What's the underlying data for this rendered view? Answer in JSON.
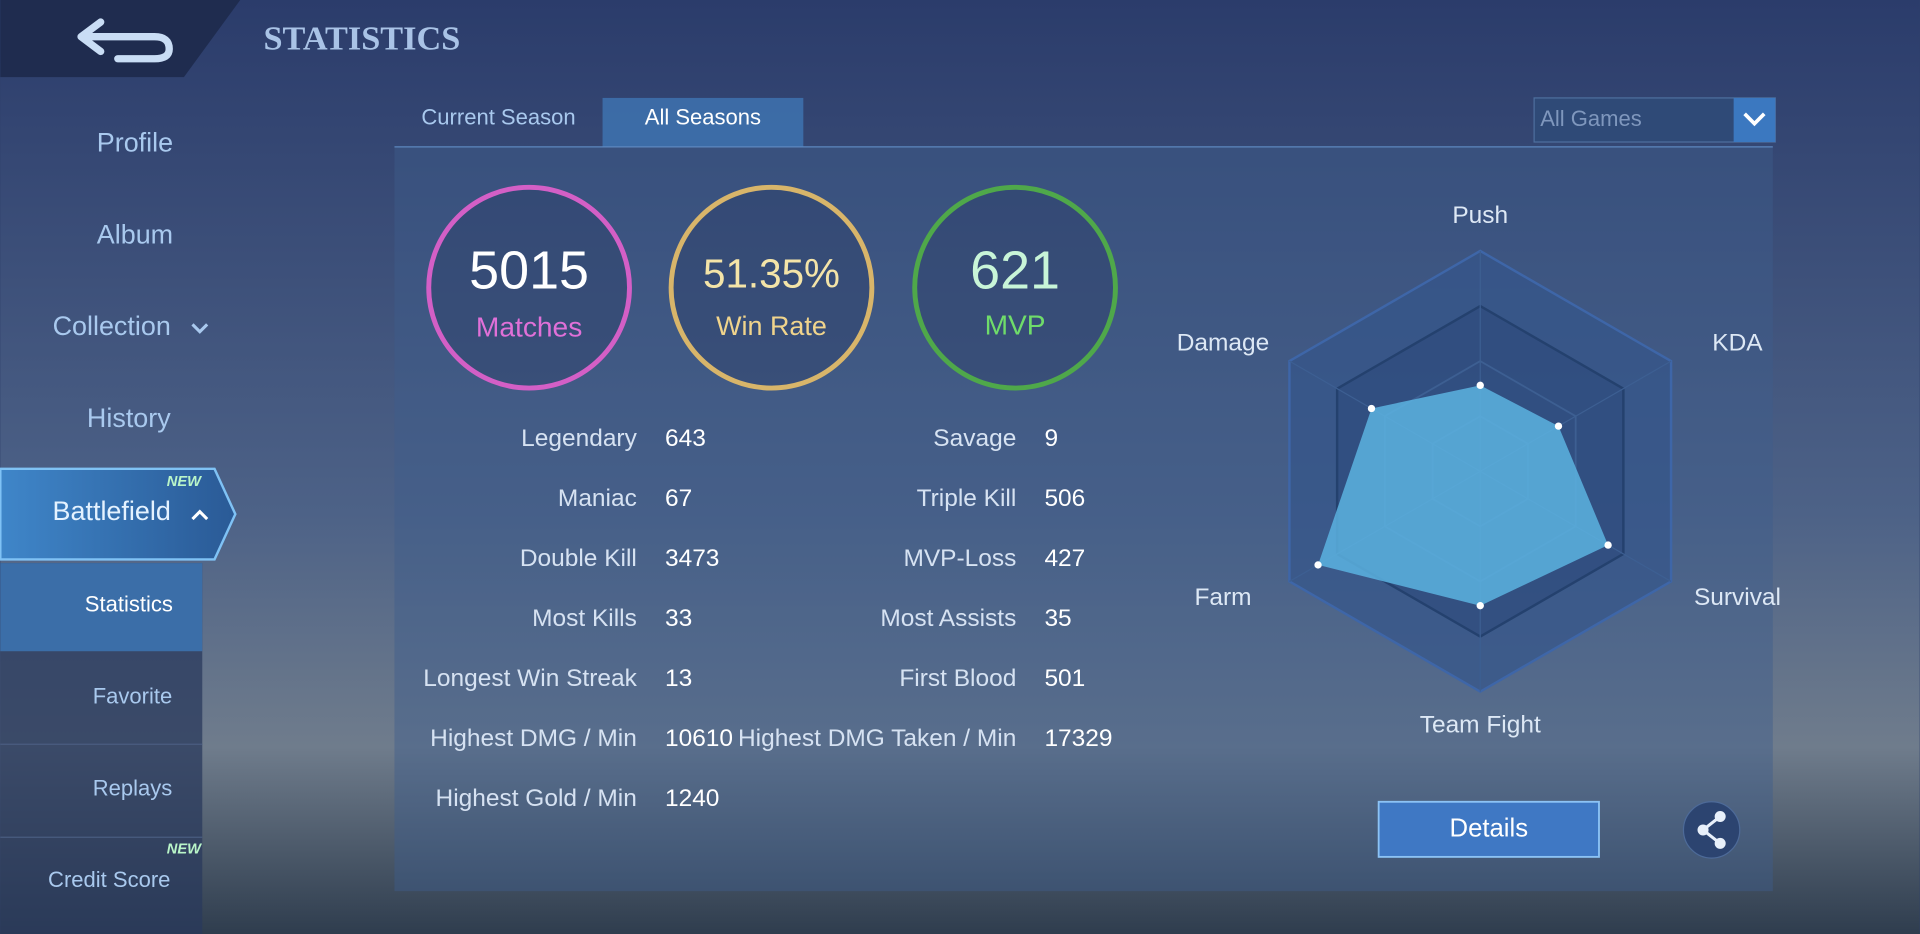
{
  "header": {
    "title": "STATISTICS"
  },
  "sidebar": {
    "items": [
      {
        "label": "Profile"
      },
      {
        "label": "Album"
      },
      {
        "label": "Collection"
      },
      {
        "label": "History"
      },
      {
        "label": "Battlefield",
        "badge": "NEW"
      },
      {
        "label": "Statistics"
      },
      {
        "label": "Favorite"
      },
      {
        "label": "Replays"
      },
      {
        "label": "Credit Score",
        "badge": "NEW"
      }
    ]
  },
  "tabs": [
    "Current Season",
    "All Seasons"
  ],
  "filter": "All Games",
  "summary": [
    {
      "value": 5015,
      "label": "Matches"
    },
    {
      "value": "51.35%",
      "label": "Win Rate"
    },
    {
      "value": 621,
      "label": "MVP"
    }
  ],
  "stats": {
    "left": [
      {
        "label": "Legendary",
        "value": 643
      },
      {
        "label": "Maniac",
        "value": 67
      },
      {
        "label": "Double Kill",
        "value": 3473
      },
      {
        "label": "Most Kills",
        "value": 33
      },
      {
        "label": "Longest Win Streak",
        "value": 13
      },
      {
        "label": "Highest DMG / Min",
        "value": 10610
      },
      {
        "label": "Highest Gold / Min",
        "value": 1240
      }
    ],
    "right": [
      {
        "label": "Savage",
        "value": 9
      },
      {
        "label": "Triple Kill",
        "value": 506
      },
      {
        "label": "MVP-Loss",
        "value": 427
      },
      {
        "label": "Most Assists",
        "value": 35
      },
      {
        "label": "First Blood",
        "value": 501
      },
      {
        "label": "Highest DMG Taken / Min",
        "value": 17329
      }
    ]
  },
  "radar": {
    "range": [
      0,
      100
    ],
    "axes": [
      {
        "label": "Push",
        "value": 39
      },
      {
        "label": "KDA",
        "value": 41
      },
      {
        "label": "Survival",
        "value": 67
      },
      {
        "label": "Team Fight",
        "value": 61
      },
      {
        "label": "Farm",
        "value": 85
      },
      {
        "label": "Damage",
        "value": 57
      }
    ]
  },
  "button": "Details"
}
